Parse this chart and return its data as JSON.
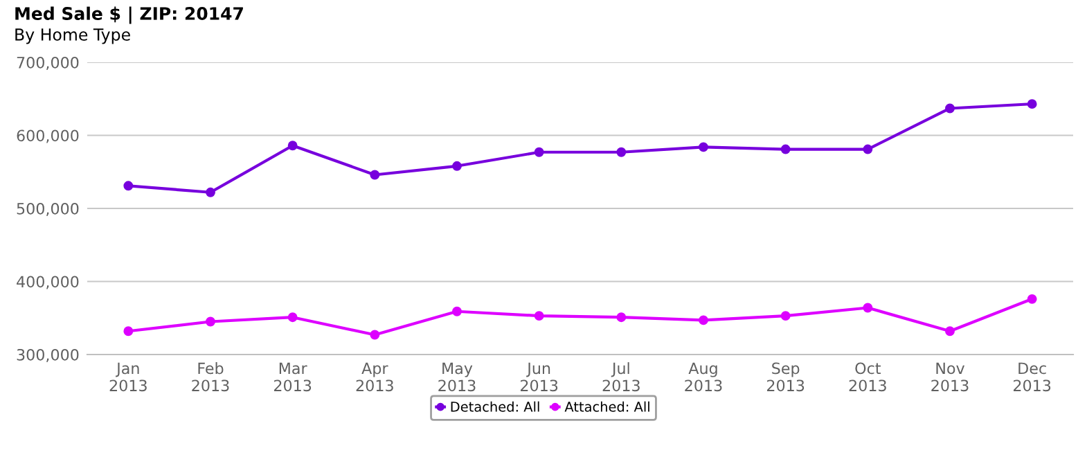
{
  "chart_data": {
    "type": "line",
    "title": "Med Sale $ | ZIP: 20147",
    "subtitle": "By Home Type",
    "categories": [
      "Jan\n2013",
      "Feb\n2013",
      "Mar\n2013",
      "Apr\n2013",
      "May\n2013",
      "Jun\n2013",
      "Jul\n2013",
      "Aug\n2013",
      "Sep\n2013",
      "Oct\n2013",
      "Nov\n2013",
      "Dec\n2013"
    ],
    "series": [
      {
        "name": "Detached: All",
        "color": "#7700dd",
        "values": [
          531000,
          522000,
          586000,
          546000,
          558000,
          577000,
          577000,
          584000,
          581000,
          581000,
          637000,
          643000
        ]
      },
      {
        "name": "Attached: All",
        "color": "#dd00ff",
        "values": [
          332000,
          345000,
          351000,
          327000,
          359000,
          353000,
          351000,
          347000,
          353000,
          364000,
          332000,
          376000
        ]
      }
    ],
    "ylim": [
      300000,
      700000
    ],
    "yticks": [
      {
        "value": 300000,
        "label": "300,000"
      },
      {
        "value": 400000,
        "label": "400,000"
      },
      {
        "value": 500000,
        "label": "500,000"
      },
      {
        "value": 600000,
        "label": "600,000"
      },
      {
        "value": 700000,
        "label": "700,000"
      }
    ],
    "grid": "y",
    "legend": "bottom",
    "marker": "circle",
    "line_style": "solid"
  }
}
